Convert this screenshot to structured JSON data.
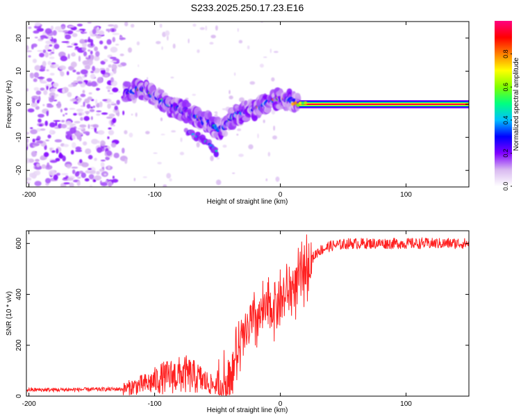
{
  "chart_data": [
    {
      "type": "heatmap",
      "title": "S233.2025.250.17.23.E16",
      "xlabel": "Height of straight line (km)",
      "ylabel": "Frequency (Hz)",
      "xlim": [
        -202,
        150
      ],
      "ylim": [
        -25,
        25
      ],
      "xticks": [
        -200,
        -100,
        0,
        100
      ],
      "yticks": [
        -20,
        -10,
        0,
        10,
        20
      ],
      "colorbar": {
        "label": "Normalized spectral amplitude",
        "range": [
          0,
          1
        ],
        "ticks": [
          "0.0",
          "0.2",
          "0.4",
          "0.6",
          "0.8"
        ],
        "colors": [
          "#ffffff",
          "#d8b8f0",
          "#8000ff",
          "#0000ff",
          "#00c0ff",
          "#00ff80",
          "#80ff00",
          "#ffff00",
          "#ff8000",
          "#ff0000",
          "#ff0080"
        ]
      },
      "ridge": {
        "x": [
          -123,
          -112,
          -100,
          -92,
          -84,
          -76,
          -68,
          -60,
          -54,
          -48,
          -44,
          -40,
          -34,
          -28,
          -22,
          -16,
          -10,
          -5,
          0,
          5,
          10,
          15
        ],
        "y": [
          3.5,
          4.5,
          3,
          0.5,
          -1,
          -2,
          -3.5,
          -5,
          -6.5,
          -7.5,
          -6.5,
          -5,
          -3,
          -2,
          -1.5,
          -0.8,
          0.5,
          1.5,
          1.8,
          1.5,
          0.8,
          0.2
        ]
      },
      "branch": {
        "x": [
          -75,
          -68,
          -62,
          -55,
          -50
        ],
        "y": [
          -7.5,
          -9.5,
          -10.5,
          -12.5,
          -14.5
        ]
      },
      "line": {
        "x_start": 15,
        "x_end": 150,
        "y": 0,
        "amplitude": 0.95
      },
      "noise_region": {
        "x_start": -202,
        "x_end": -130,
        "y_start": -25,
        "y_end": 25
      }
    },
    {
      "type": "line",
      "xlabel": "Height of straight line (km)",
      "ylabel": "SNR (10 * v/v)",
      "xlim": [
        -202,
        150
      ],
      "ylim": [
        0,
        650
      ],
      "xticks": [
        -200,
        -100,
        0,
        100
      ],
      "yticks": [
        0,
        200,
        400,
        600
      ],
      "series": [
        {
          "name": "SNR",
          "color": "#ff2020",
          "x": [
            -202,
            -180,
            -160,
            -140,
            -125,
            -115,
            -105,
            -95,
            -85,
            -75,
            -65,
            -55,
            -48,
            -42,
            -35,
            -28,
            -20,
            -12,
            -5,
            2,
            8,
            15,
            22,
            30,
            40,
            55,
            80,
            100,
            120,
            150
          ],
          "values": [
            25,
            25,
            26,
            27,
            28,
            40,
            50,
            70,
            80,
            85,
            70,
            45,
            40,
            70,
            150,
            240,
            300,
            330,
            360,
            390,
            420,
            450,
            520,
            570,
            590,
            600,
            600,
            600,
            600,
            600
          ]
        }
      ]
    }
  ]
}
